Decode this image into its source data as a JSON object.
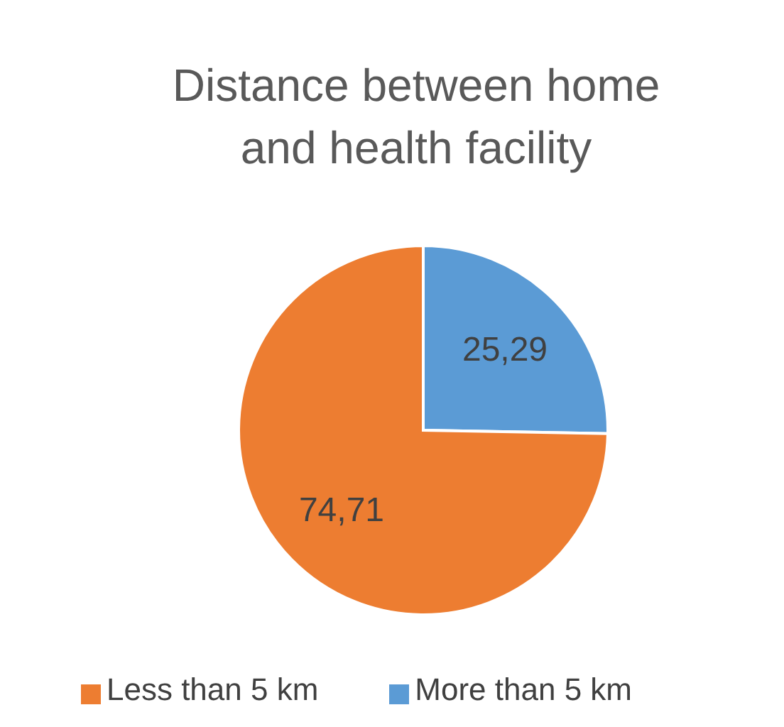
{
  "chart_data": {
    "type": "pie",
    "title": "Distance between home and health facility",
    "categories": [
      "More than 5 km",
      "Less than 5 km"
    ],
    "values": [
      25.29,
      74.71
    ],
    "value_labels": [
      "25,29",
      "74,71"
    ],
    "colors": [
      "#5b9bd5",
      "#ed7d31"
    ],
    "legend": "bottom"
  }
}
